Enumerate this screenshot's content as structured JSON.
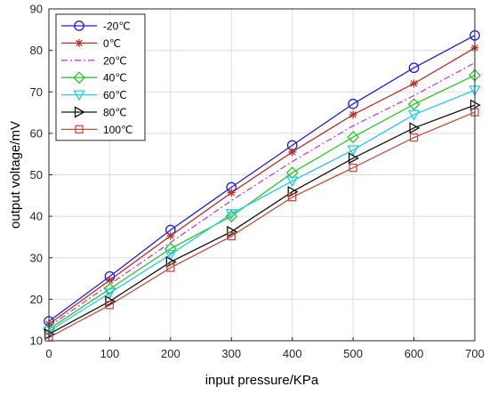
{
  "chart_data": {
    "type": "line",
    "xlabel": "input pressure/KPa",
    "ylabel": "output voltage/mV",
    "xlim": [
      0,
      700
    ],
    "ylim": [
      10,
      90
    ],
    "xticks": [
      "0",
      "100",
      "200",
      "300",
      "400",
      "500",
      "600",
      "700"
    ],
    "yticks": [
      "10",
      "20",
      "30",
      "40",
      "50",
      "60",
      "70",
      "80",
      "90"
    ],
    "grid": true,
    "legend_position": "top-left",
    "x": [
      0,
      100,
      200,
      300,
      400,
      500,
      600,
      700
    ],
    "series": [
      {
        "name": "-20℃",
        "color": "#1f1fd6",
        "marker": "circle",
        "dash": "solid",
        "values": [
          14.7,
          25.5,
          36.7,
          47.0,
          57.1,
          67.1,
          75.8,
          83.6
        ]
      },
      {
        "name": "0℃",
        "color": "#b5342a",
        "marker": "asterisk",
        "dash": "solid",
        "values": [
          14.0,
          24.6,
          35.3,
          45.7,
          55.5,
          64.5,
          72.0,
          80.6
        ]
      },
      {
        "name": "20℃",
        "color": "#c842c8",
        "marker": "none",
        "dash": "dashdot",
        "values": [
          13.4,
          23.6,
          33.7,
          43.8,
          53.2,
          61.8,
          69.1,
          77.0
        ]
      },
      {
        "name": "40℃",
        "color": "#2ec42e",
        "marker": "diamond",
        "dash": "solid",
        "values": [
          12.8,
          22.5,
          32.2,
          40.0,
          50.5,
          59.1,
          67.0,
          74.0
        ]
      },
      {
        "name": "60℃",
        "color": "#29c8f0",
        "marker": "triangle-down",
        "dash": "solid",
        "values": [
          12.3,
          21.5,
          30.8,
          40.6,
          48.5,
          56.0,
          64.5,
          70.4
        ]
      },
      {
        "name": "80℃",
        "color": "#111111",
        "marker": "triangle-right",
        "dash": "solid",
        "values": [
          11.6,
          19.5,
          29.0,
          36.3,
          45.9,
          54.0,
          61.3,
          66.8
        ]
      },
      {
        "name": "100℃",
        "color": "#c0503c",
        "marker": "square",
        "dash": "solid",
        "values": [
          10.8,
          18.6,
          27.6,
          35.2,
          44.6,
          51.7,
          59.0,
          65.1
        ]
      }
    ]
  }
}
